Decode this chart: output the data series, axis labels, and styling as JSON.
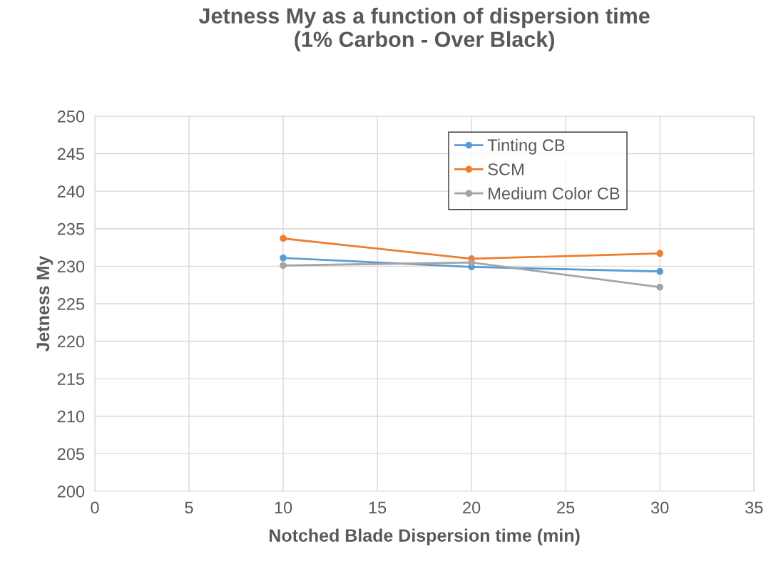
{
  "chart_data": {
    "type": "line",
    "title": "Jetness My as a function of dispersion time\n(1% Carbon - Over Black)",
    "xlabel": "Notched Blade Dispersion time (min)",
    "ylabel": "Jetness My",
    "x": [
      10,
      20,
      30
    ],
    "series": [
      {
        "name": "Tinting CB",
        "color": "#5b9bd5",
        "values": [
          231.1,
          229.9,
          229.3
        ]
      },
      {
        "name": "SCM",
        "color": "#ed7d31",
        "values": [
          233.7,
          231.0,
          231.7
        ]
      },
      {
        "name": "Medium Color CB",
        "color": "#a5a5a5",
        "values": [
          230.1,
          230.5,
          227.2
        ]
      }
    ],
    "xlim": [
      0,
      35
    ],
    "xticks": [
      0,
      5,
      10,
      15,
      20,
      25,
      30,
      35
    ],
    "ylim": [
      200,
      250
    ],
    "yticks": [
      200,
      205,
      210,
      215,
      220,
      225,
      230,
      235,
      240,
      245,
      250
    ],
    "grid": true,
    "legend": "top right",
    "marker": "circle",
    "line_style": "solid"
  }
}
